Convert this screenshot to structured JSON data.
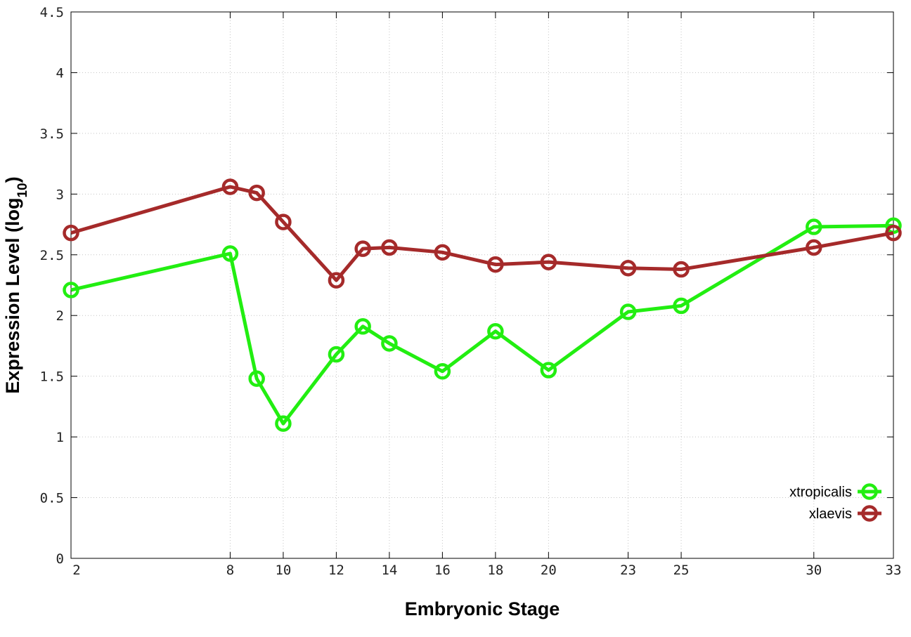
{
  "chart_data": {
    "type": "line",
    "xlabel": "Embryonic Stage",
    "ylabel_main": "Expression Level (log",
    "ylabel_sub": "10",
    "ylabel_close": ")",
    "x_ticks": [
      2,
      8,
      10,
      12,
      14,
      16,
      18,
      20,
      23,
      25,
      30,
      33
    ],
    "x_tick_labels": [
      "2",
      "8",
      "10",
      "12",
      "14",
      "16",
      "18",
      "20",
      "23",
      "25",
      "30",
      "33"
    ],
    "y_ticks": [
      0,
      0.5,
      1,
      1.5,
      2,
      2.5,
      3,
      3.5,
      4,
      4.5
    ],
    "y_tick_labels": [
      "0",
      "0.5",
      "1",
      "1.5",
      "2",
      "2.5",
      "3",
      "3.5",
      "4",
      "4.5"
    ],
    "xlim": [
      2,
      33
    ],
    "ylim": [
      0,
      4.5
    ],
    "grid": true,
    "legend_position": "bottom-right",
    "x": [
      2,
      8,
      9,
      10,
      12,
      13,
      14,
      16,
      18,
      20,
      23,
      25,
      30,
      33
    ],
    "series": [
      {
        "name": "xtropicalis",
        "color": "#22ee11",
        "values": [
          2.21,
          2.51,
          1.48,
          1.11,
          1.68,
          1.91,
          1.77,
          1.54,
          1.87,
          1.55,
          2.03,
          2.08,
          2.73,
          2.74
        ]
      },
      {
        "name": "xlaevis",
        "color": "#a52a2a",
        "values": [
          2.68,
          3.06,
          3.01,
          2.77,
          2.29,
          2.55,
          2.56,
          2.52,
          2.42,
          2.44,
          2.39,
          2.38,
          2.56,
          2.68
        ]
      }
    ]
  }
}
